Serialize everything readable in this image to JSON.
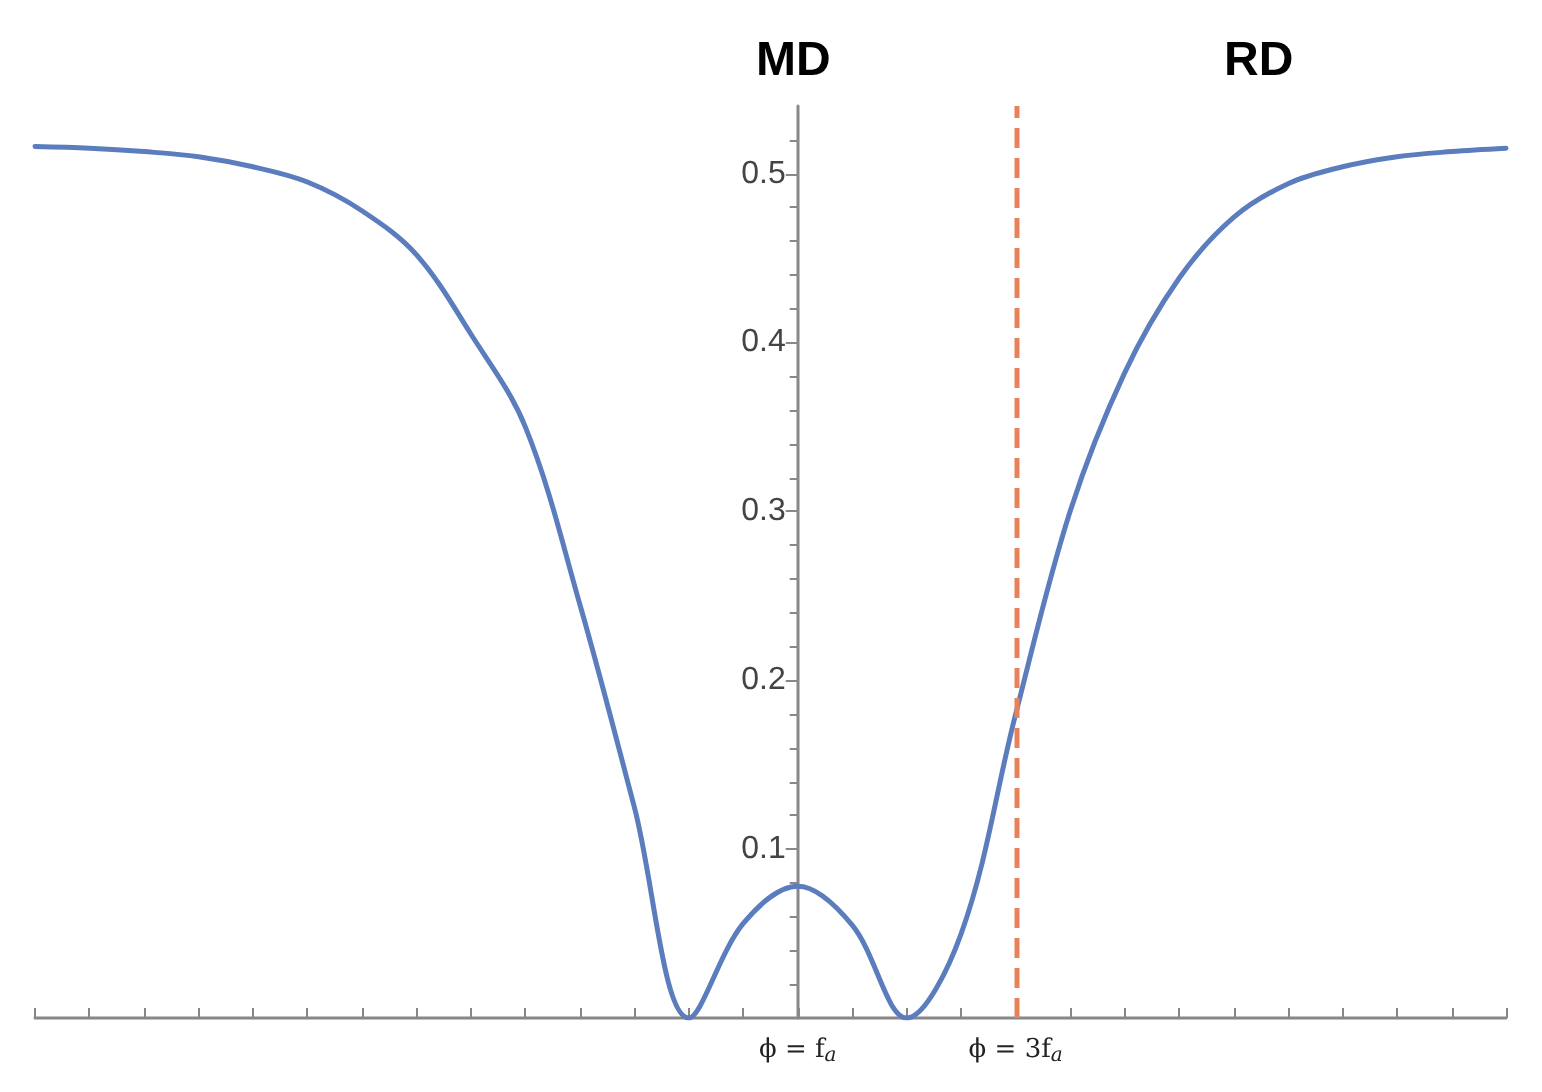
{
  "chart_data": {
    "type": "line",
    "annotations": [
      "MD",
      "RD"
    ],
    "categories": [
      null,
      null,
      null,
      null,
      null,
      null,
      null,
      null,
      null,
      null,
      null,
      null,
      null,
      null,
      "ϕ = f$_{a}$",
      null,
      null,
      null,
      "ϕ = 3f$_{a}$",
      null,
      null,
      null,
      null,
      null,
      null,
      null,
      null,
      null
    ],
    "series": [
      {
        "color": "#5b7dbd",
        "values": [
          0.516,
          0.515,
          0.513,
          0.51,
          0.504,
          0.495,
          0.478,
          0.452,
          0.405,
          0.35,
          0.245,
          0.125,
          0,
          0.056,
          0.078,
          0.055,
          0,
          0.05,
          0.18,
          0.3,
          0.382,
          0.438,
          0.474,
          0.494,
          0.504,
          0.51,
          0.513,
          0.515
        ]
      }
    ],
    "ylim": [
      0,
      0.54
    ],
    "yticks": [
      0.1,
      0.2,
      0.3,
      0.4,
      0.5
    ],
    "ref_lines": [
      {
        "axis": "x",
        "value": "ϕ = 3f$_{a}$",
        "color": "#e8825a",
        "line_style": "dashed"
      }
    ],
    "grid": false,
    "marker": "none",
    "line_style": "solid"
  }
}
